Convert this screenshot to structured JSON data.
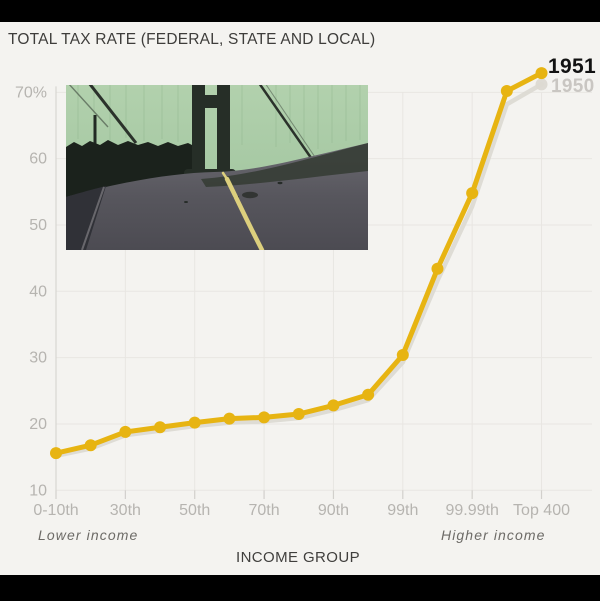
{
  "frame": {
    "background_color": "#f4f3f0",
    "letterbox_color": "#000000"
  },
  "header": {
    "title": "TOTAL TAX RATE (FEDERAL, STATE AND LOCAL)"
  },
  "inset_media": {
    "alt": "Archival film still: roadway leading onto a suspension bridge"
  },
  "chart_data": {
    "type": "line",
    "title": "TOTAL TAX RATE (FEDERAL, STATE AND LOCAL)",
    "xlabel": "INCOME GROUP",
    "ylabel": "",
    "x_axis_note_left": "Lower income",
    "x_axis_note_right": "Higher income",
    "year_label_current": "1951",
    "year_label_previous": "1950",
    "ylim": [
      10,
      74
    ],
    "grid": true,
    "legend_position": "none",
    "y_ticks": [
      {
        "value": 10,
        "label": "10"
      },
      {
        "value": 20,
        "label": "20"
      },
      {
        "value": 30,
        "label": "30"
      },
      {
        "value": 40,
        "label": "40"
      },
      {
        "value": 50,
        "label": "50"
      },
      {
        "value": 60,
        "label": "60"
      },
      {
        "value": 70,
        "label": "70%"
      }
    ],
    "x_ticks": [
      {
        "point_index": 0,
        "label": "0-10th"
      },
      {
        "point_index": 2,
        "label": "30th"
      },
      {
        "point_index": 4,
        "label": "50th"
      },
      {
        "point_index": 6,
        "label": "70th"
      },
      {
        "point_index": 8,
        "label": "90th"
      },
      {
        "point_index": 10,
        "label": "99th"
      },
      {
        "point_index": 12,
        "label": "99.99th"
      },
      {
        "point_index": 14,
        "label": "Top 400"
      }
    ],
    "num_points": 15,
    "series": [
      {
        "name": "1951",
        "color": "#e7b412",
        "values": [
          15.6,
          16.8,
          18.8,
          19.5,
          20.2,
          20.8,
          21.0,
          21.5,
          22.8,
          24.4,
          30.4,
          43.4,
          54.8,
          70.2,
          72.9
        ]
      }
    ],
    "ghost_series": {
      "name": "1950",
      "color": "#dcd9d2",
      "values": [
        15.2,
        16.3,
        18.3,
        19.0,
        19.7,
        20.2,
        20.4,
        20.9,
        22.1,
        23.6,
        29.3,
        41.6,
        52.8,
        68.2,
        71.2
      ]
    }
  }
}
